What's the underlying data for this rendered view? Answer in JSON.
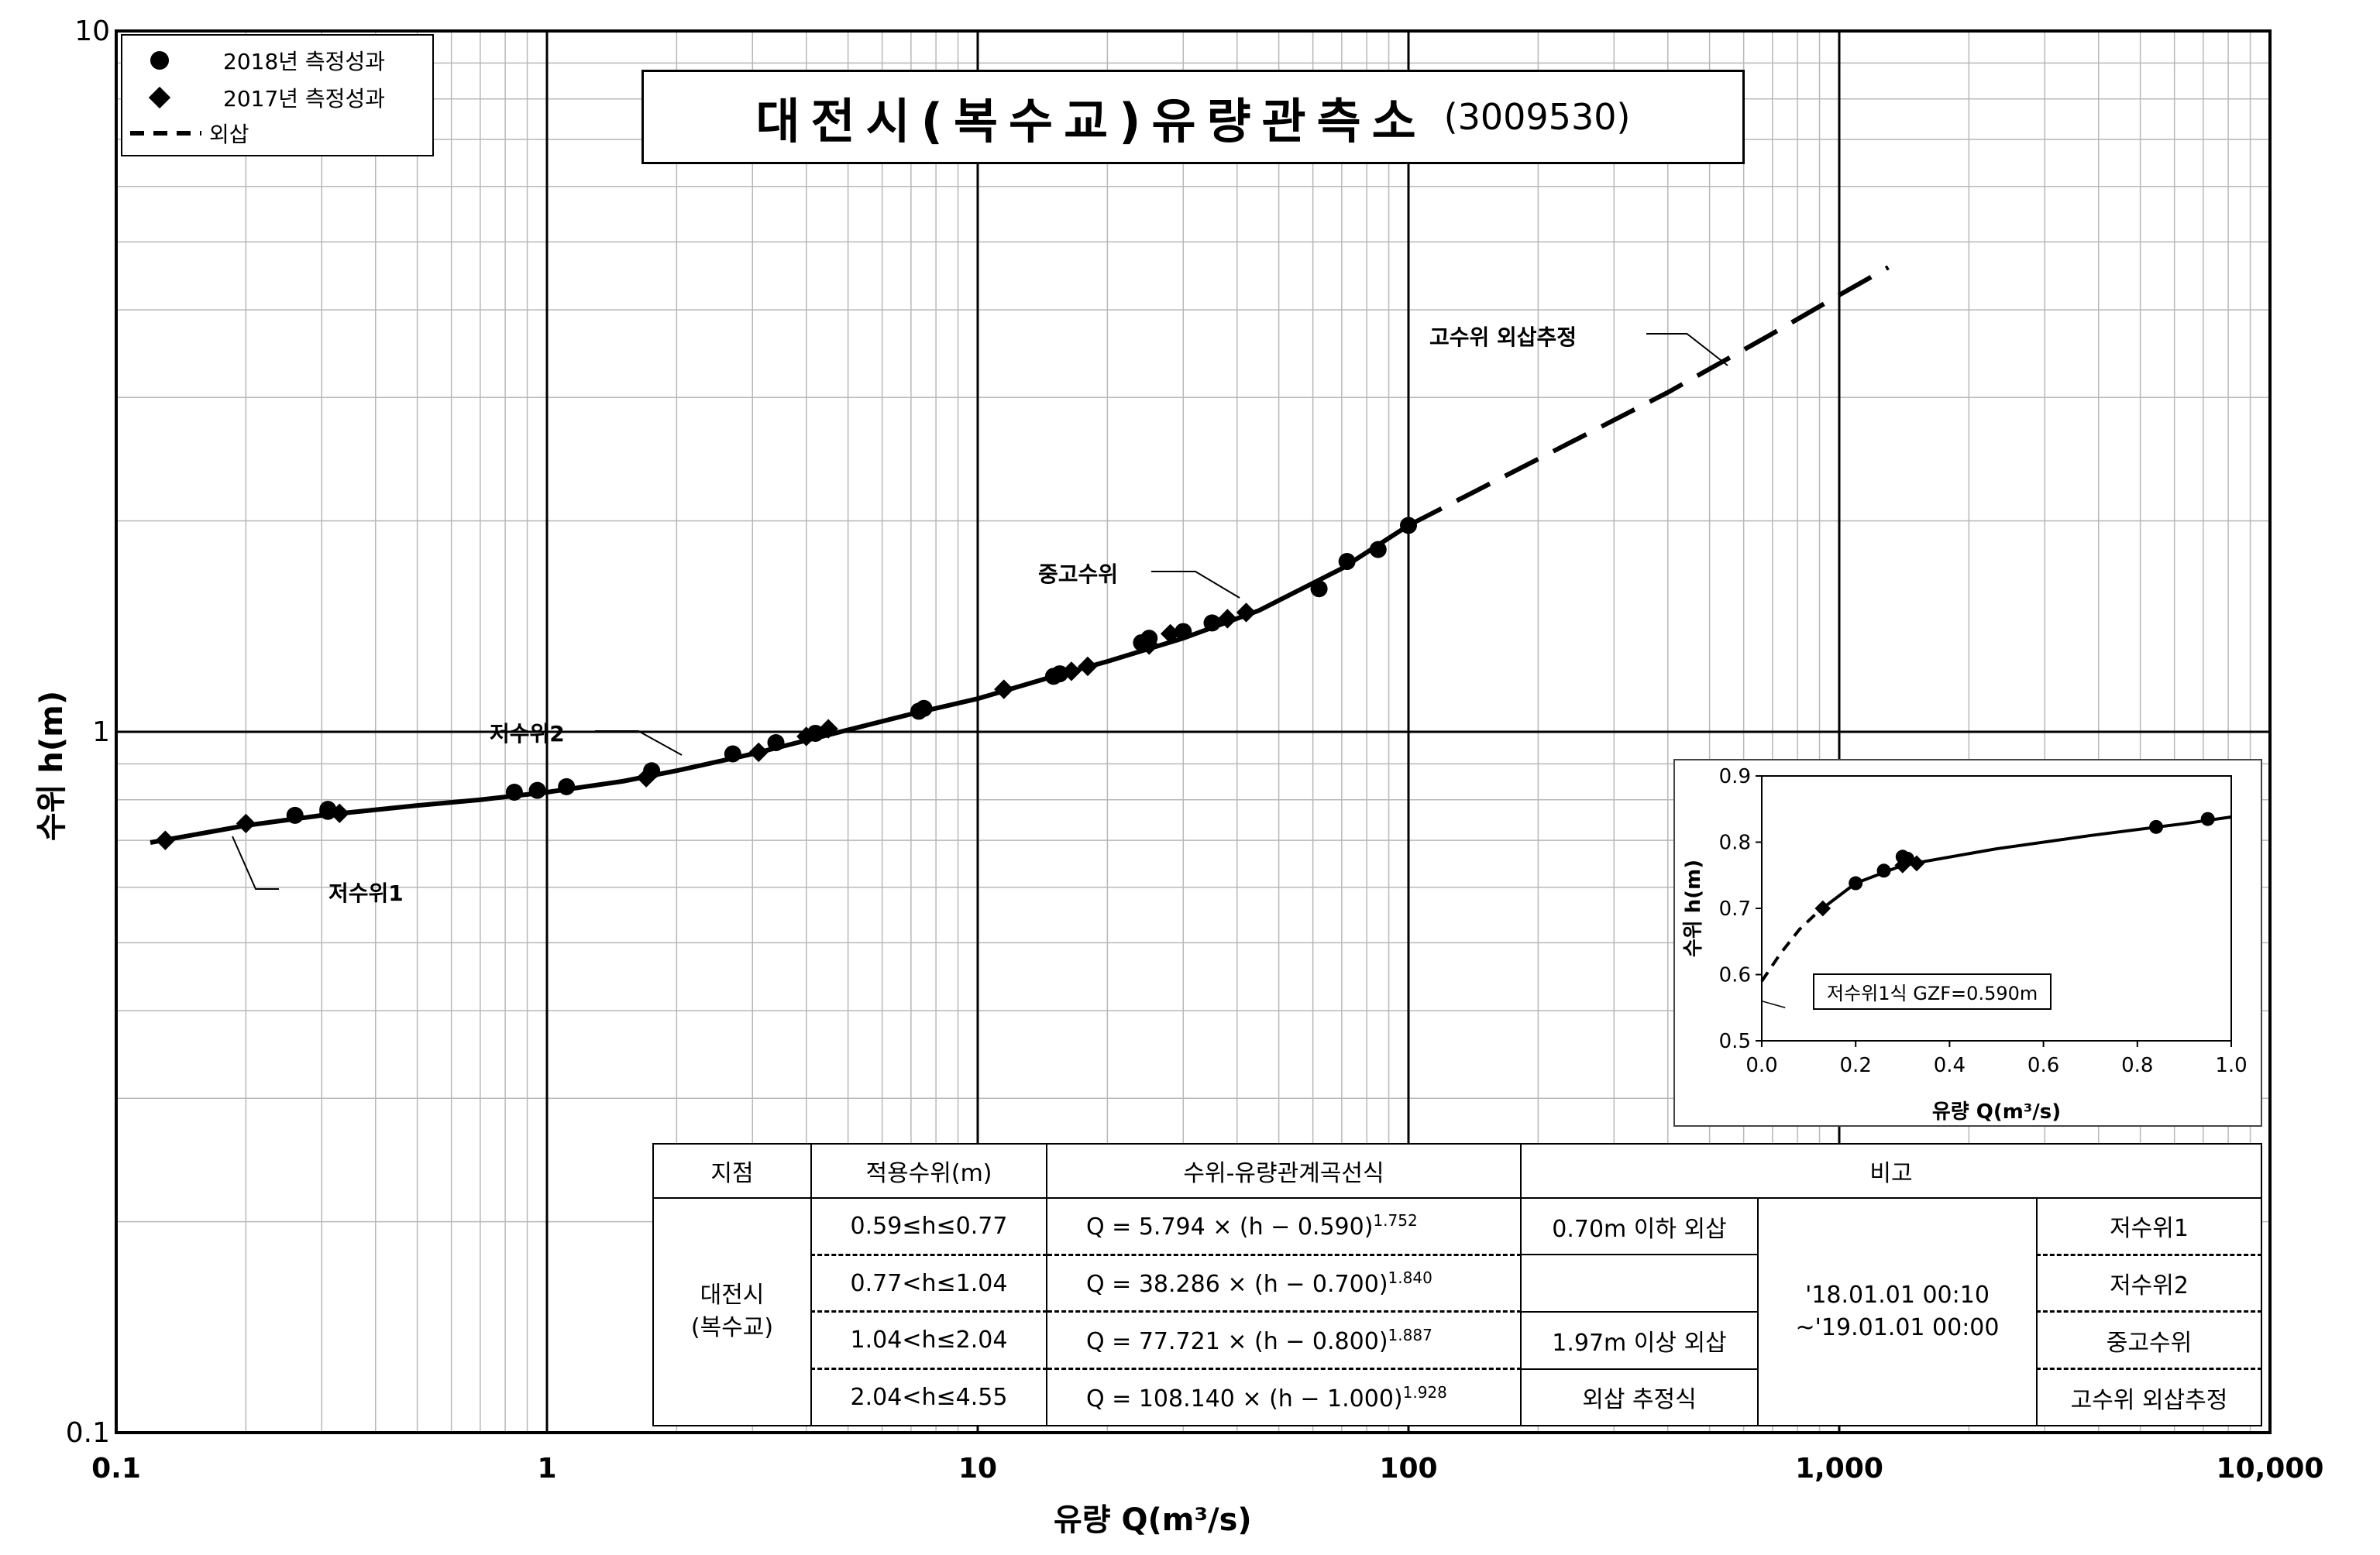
{
  "title": {
    "main": "대전시(복수교)유량관측소",
    "code": "(3009530)"
  },
  "legend": {
    "items": [
      {
        "symbol": "circle",
        "label": "2018년 측정성과"
      },
      {
        "symbol": "diamond",
        "label": "2017년 측정성과"
      },
      {
        "symbol": "dash",
        "label": "외삽"
      }
    ]
  },
  "axes": {
    "xlabel": "유량 Q(m³/s)",
    "ylabel": "수위 h(m)",
    "x_ticks": [
      "0.1",
      "1",
      "10",
      "100",
      "1,000",
      "10,000"
    ],
    "y_ticks": [
      "10",
      "1",
      "0.1"
    ]
  },
  "annotations": {
    "low1": "저수위1",
    "low2": "저수위2",
    "mid": "중고수위",
    "high": "고수위 외삽추정"
  },
  "chart_data": [
    {
      "type": "line",
      "scale": {
        "x": "log",
        "y": "log"
      },
      "xlim": [
        0.1,
        10000
      ],
      "ylim": [
        0.1,
        10
      ],
      "xlabel": "유량 Q(m³/s)",
      "ylabel": "수위 h(m)",
      "grid": true,
      "legend": "top-left",
      "series": [
        {
          "name": "2018년 측정성과",
          "marker": "circle",
          "x": [
            0.26,
            0.31,
            0.31,
            0.84,
            0.95,
            1.11,
            1.75,
            2.7,
            3.4,
            4.2,
            7.3,
            7.5,
            15,
            15.5,
            24,
            25,
            30,
            35,
            62,
            72,
            85,
            100
          ],
          "y": [
            0.76,
            0.775,
            0.77,
            0.82,
            0.825,
            0.835,
            0.88,
            0.93,
            0.965,
            0.995,
            1.07,
            1.08,
            1.2,
            1.21,
            1.34,
            1.36,
            1.39,
            1.43,
            1.6,
            1.75,
            1.82,
            1.97
          ]
        },
        {
          "name": "2017년 측정성과",
          "marker": "diamond",
          "x": [
            0.13,
            0.2,
            0.33,
            1.7,
            3.1,
            4.0,
            4.5,
            11.5,
            16.5,
            18,
            25,
            28,
            38,
            42
          ],
          "y": [
            0.7,
            0.74,
            0.765,
            0.86,
            0.935,
            0.985,
            1.01,
            1.15,
            1.22,
            1.24,
            1.33,
            1.38,
            1.45,
            1.48
          ]
        },
        {
          "name": "수위-유량관계곡선",
          "style": "solid",
          "x": [
            0.12,
            0.2,
            0.3,
            0.5,
            0.7,
            1.0,
            1.5,
            2.0,
            3.0,
            4.5,
            7.0,
            10,
            15,
            20,
            30,
            45,
            70,
            100
          ],
          "y": [
            0.695,
            0.735,
            0.76,
            0.785,
            0.8,
            0.82,
            0.85,
            0.88,
            0.93,
            0.99,
            1.06,
            1.115,
            1.2,
            1.26,
            1.36,
            1.49,
            1.71,
            1.97
          ]
        },
        {
          "name": "외삽",
          "style": "dashed",
          "x": [
            100,
            200,
            400,
            700,
            1000,
            1300
          ],
          "y": [
            1.97,
            2.45,
            3.05,
            3.7,
            4.2,
            4.6
          ]
        }
      ]
    },
    {
      "type": "line",
      "scale": {
        "x": "linear",
        "y": "linear"
      },
      "xlim": [
        0,
        1.0
      ],
      "ylim": [
        0.5,
        0.9
      ],
      "xlabel": "유량 Q(m³/s)",
      "ylabel": "수위 h(m)",
      "x_ticks": [
        "0.0",
        "0.2",
        "0.4",
        "0.6",
        "0.8",
        "1.0"
      ],
      "y_ticks": [
        "0.5",
        "0.6",
        "0.7",
        "0.8",
        "0.9"
      ],
      "note": "저수위1식 GZF=0.590m",
      "series": [
        {
          "name": "2018년 측정성과",
          "marker": "circle",
          "x": [
            0.2,
            0.26,
            0.3,
            0.31,
            0.84,
            0.95
          ],
          "y": [
            0.738,
            0.757,
            0.778,
            0.775,
            0.823,
            0.835
          ]
        },
        {
          "name": "2017년 측정성과",
          "marker": "diamond",
          "x": [
            0.13,
            0.3,
            0.33
          ],
          "y": [
            0.7,
            0.765,
            0.768
          ]
        },
        {
          "name": "curve",
          "style": "solid",
          "x": [
            0.12,
            0.2,
            0.3,
            0.5,
            0.7,
            0.9,
            1.0
          ],
          "y": [
            0.695,
            0.738,
            0.765,
            0.79,
            0.81,
            0.828,
            0.838
          ]
        },
        {
          "name": "외삽",
          "style": "dashed",
          "x": [
            0.0,
            0.04,
            0.08,
            0.12
          ],
          "y": [
            0.59,
            0.632,
            0.668,
            0.695
          ]
        }
      ]
    }
  ],
  "table": {
    "headers": [
      "지점",
      "적용수위(m)",
      "수위-유량관계곡선식",
      "비고"
    ],
    "station": "대전시\n(복수교)",
    "period": "'18.01.01 00:10\n~'19.01.01 00:00",
    "rows": [
      {
        "range": "0.59≤h≤0.77",
        "eq_a": "Q =      5.794 × (h − 0.590)",
        "eq_exp": "1.752",
        "remark": "0.70m 이하 외삽",
        "segment": "저수위1"
      },
      {
        "range": "0.77<h≤1.04",
        "eq_a": "Q =   38.286 × (h − 0.700)",
        "eq_exp": "1.840",
        "remark": "",
        "segment": "저수위2"
      },
      {
        "range": "1.04<h≤2.04",
        "eq_a": "Q =   77.721 × (h − 0.800)",
        "eq_exp": "1.887",
        "remark": "1.97m 이상 외삽",
        "segment": "중고수위"
      },
      {
        "range": "2.04<h≤4.55",
        "eq_a": "Q = 108.140 × (h − 1.000)",
        "eq_exp": "1.928",
        "remark": "외삽 추정식",
        "segment": "고수위 외삽추정"
      }
    ]
  }
}
